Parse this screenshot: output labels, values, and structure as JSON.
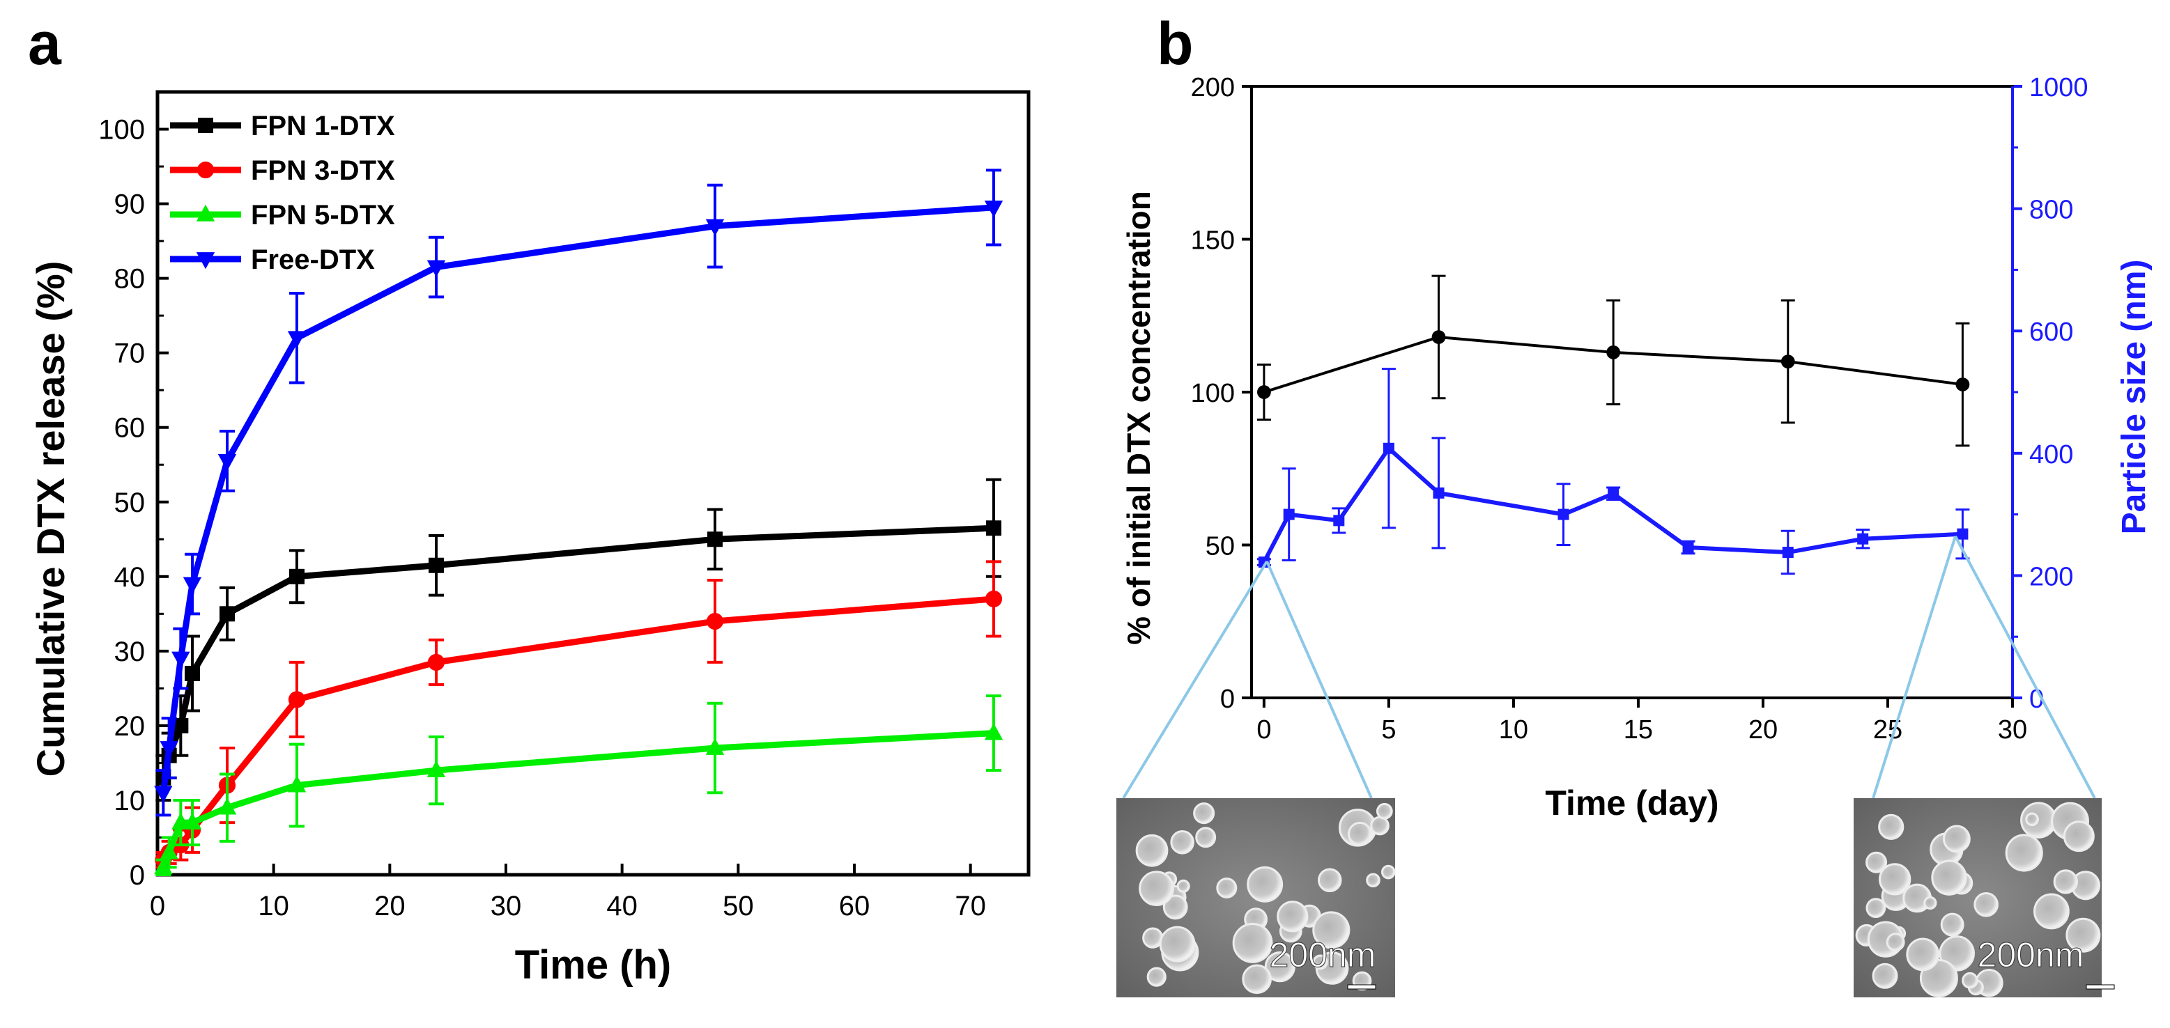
{
  "chart_data": [
    {
      "panel_label": "a",
      "type": "line",
      "xlabel": "Time (h)",
      "ylabel": "Cumulative DTX release (%)",
      "xlim": [
        0,
        75
      ],
      "ylim": [
        0,
        105
      ],
      "xticks": [
        0,
        10,
        20,
        30,
        40,
        50,
        60,
        70
      ],
      "yticks": [
        0,
        10,
        20,
        30,
        40,
        50,
        60,
        70,
        80,
        90,
        100
      ],
      "legend_position": "top-left",
      "x": [
        0.5,
        1,
        2,
        3,
        6,
        12,
        24,
        48,
        72
      ],
      "series": [
        {
          "name": "FPN 1-DTX",
          "color": "#000000",
          "marker": "square",
          "values": [
            13,
            16,
            20,
            27,
            35,
            40,
            41.5,
            45,
            46.5
          ],
          "errors": [
            3,
            3,
            4,
            5,
            3.5,
            3.5,
            4,
            4,
            6.5
          ]
        },
        {
          "name": "FPN 3-DTX",
          "color": "#ff0000",
          "marker": "circle",
          "values": [
            2,
            3,
            4,
            6,
            12,
            23.5,
            28.5,
            34,
            37
          ],
          "errors": [
            1,
            1.5,
            2,
            3,
            5,
            5,
            3,
            5.5,
            5
          ]
        },
        {
          "name": "FPN 5-DTX",
          "color": "#00ee00",
          "marker": "triangle-up",
          "values": [
            1,
            3,
            7,
            7,
            9,
            12,
            14,
            17,
            19
          ],
          "errors": [
            1,
            2,
            3,
            3,
            4.5,
            5.5,
            4.5,
            6,
            5
          ]
        },
        {
          "name": "Free-DTX",
          "color": "#0000ff",
          "marker": "triangle-down",
          "values": [
            11,
            17,
            29,
            39,
            55.5,
            72,
            81.5,
            87,
            89.5
          ],
          "errors": [
            3,
            4,
            4,
            4,
            4,
            6,
            4,
            5.5,
            5
          ]
        }
      ]
    },
    {
      "panel_label": "b",
      "type": "line",
      "xlabel": "Time (day)",
      "ylabel": "% of initial DTX concentration",
      "y2label": "Particle size (nm)",
      "xlim": [
        -0.5,
        30
      ],
      "ylim": [
        0,
        200
      ],
      "y2lim": [
        0,
        1000
      ],
      "xticks": [
        0,
        5,
        10,
        15,
        20,
        25,
        30
      ],
      "yticks": [
        0,
        50,
        100,
        150,
        200
      ],
      "y2ticks": [
        0,
        200,
        400,
        600,
        800,
        1000
      ],
      "y2_color": "#1a1aff",
      "series": [
        {
          "name": "DTX concentration",
          "axis": "left",
          "color": "#000000",
          "x": [
            0,
            7,
            14,
            21,
            28
          ],
          "values": [
            100,
            118,
            113,
            110,
            102.5
          ],
          "errors": [
            9,
            20,
            17,
            20,
            20
          ]
        },
        {
          "name": "Particle size",
          "axis": "right",
          "color": "#1a1aff",
          "x": [
            0,
            1,
            3,
            5,
            7,
            12,
            14,
            17,
            21,
            24,
            28
          ],
          "values": [
            222,
            300,
            290,
            408,
            335,
            300,
            334,
            246,
            238,
            260,
            268
          ],
          "errors": [
            5,
            75,
            20,
            130,
            90,
            50,
            10,
            10,
            35,
            15,
            40
          ]
        }
      ]
    }
  ],
  "sem_images": [
    {
      "name": "day-0",
      "scale_label": "200nm",
      "attached_day": 0
    },
    {
      "name": "day-28",
      "scale_label": "200nm",
      "attached_day": 28
    }
  ]
}
